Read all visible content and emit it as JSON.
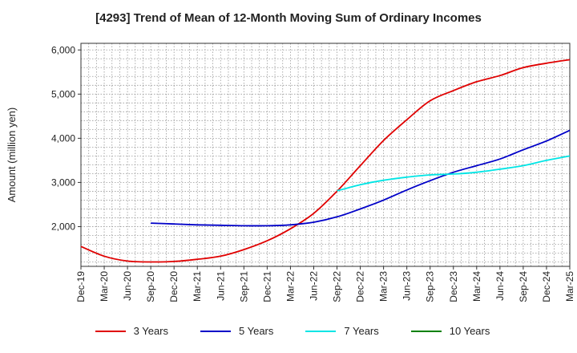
{
  "chart_data": {
    "type": "line",
    "title": "[4293]  Trend of Mean of 12-Month Moving Sum of Ordinary Incomes",
    "xlabel": "",
    "ylabel": "Amount (million yen)",
    "ylim": [
      1100,
      6150
    ],
    "y_ticks": [
      2000,
      3000,
      4000,
      5000,
      6000
    ],
    "y_tick_labels": [
      "2,000",
      "3,000",
      "4,000",
      "5,000",
      "6,000"
    ],
    "x_tick_labels": [
      "Dec-19",
      "Mar-20",
      "Jun-20",
      "Sep-20",
      "Dec-20",
      "Mar-21",
      "Jun-21",
      "Sep-21",
      "Dec-21",
      "Mar-22",
      "Jun-22",
      "Sep-22",
      "Dec-22",
      "Mar-23",
      "Jun-23",
      "Sep-23",
      "Dec-23",
      "Mar-24",
      "Jun-24",
      "Sep-24",
      "Dec-24",
      "Mar-25"
    ],
    "x_range": [
      0,
      63
    ],
    "series": [
      {
        "name": "3 Years",
        "color": "#e00000",
        "x": [
          0,
          3,
          6,
          9,
          12,
          15,
          18,
          21,
          24,
          27,
          30,
          33,
          36,
          39,
          42,
          45,
          48,
          51,
          54,
          57,
          60,
          63
        ],
        "values": [
          1550,
          1330,
          1220,
          1200,
          1210,
          1260,
          1330,
          1480,
          1680,
          1950,
          2300,
          2800,
          3380,
          3950,
          4420,
          4850,
          5080,
          5280,
          5420,
          5600,
          5700,
          5780
        ],
        "x2": [
          63
        ],
        "extra": []
      },
      {
        "name": "5 Years",
        "color": "#0000c8",
        "x": [
          9,
          12,
          15,
          18,
          21,
          24,
          27,
          30,
          33,
          36,
          39,
          42,
          45,
          48,
          51,
          54,
          57,
          60,
          63
        ],
        "values": [
          2080,
          2060,
          2040,
          2030,
          2020,
          2020,
          2040,
          2100,
          2220,
          2400,
          2600,
          2830,
          3040,
          3230,
          3380,
          3530,
          3740,
          3940,
          4180
        ]
      },
      {
        "name": "7 Years",
        "color": "#00e5e5",
        "x": [
          33,
          36,
          39,
          42,
          45,
          48,
          51,
          54,
          57,
          60,
          63
        ],
        "values": [
          2810,
          2950,
          3050,
          3120,
          3170,
          3190,
          3230,
          3300,
          3380,
          3500,
          3600
        ]
      },
      {
        "name": "10 Years",
        "color": "#008000",
        "x": [],
        "values": []
      }
    ]
  }
}
